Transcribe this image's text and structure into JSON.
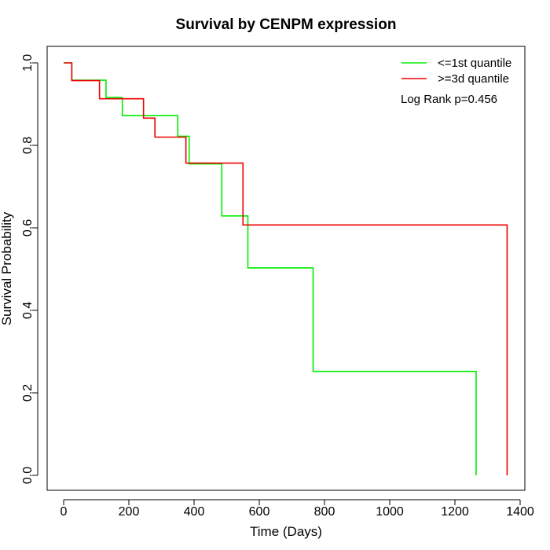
{
  "chart_data": {
    "type": "line",
    "title": "Survival by CENPM expression",
    "xlabel": "Time (Days)",
    "ylabel": "Survival Probability",
    "xlim": [
      0,
      1400
    ],
    "ylim": [
      0,
      1.0
    ],
    "xticks": [
      0,
      200,
      400,
      600,
      800,
      1000,
      1200,
      1400
    ],
    "yticks": [
      0.0,
      0.2,
      0.4,
      0.6,
      0.8,
      1.0
    ],
    "xtick_labels": [
      "0",
      "200",
      "400",
      "600",
      "800",
      "1000",
      "1200",
      "1400"
    ],
    "ytick_labels": [
      "0.0",
      "0.2",
      "0.4",
      "0.6",
      "0.8",
      "1.0"
    ],
    "legend_position": "top-right",
    "annotation": "Log Rank p=0.456",
    "series": [
      {
        "name": "<=1st quantile",
        "color": "#00ee00",
        "step": true,
        "x": [
          0,
          25,
          130,
          180,
          350,
          385,
          485,
          565,
          765,
          1265,
          1265
        ],
        "y": [
          1.0,
          0.958,
          0.916,
          0.872,
          0.822,
          0.755,
          0.629,
          0.503,
          0.252,
          0.252,
          0.0
        ]
      },
      {
        "name": ">=3d quantile",
        "color": "#ee0000",
        "step": true,
        "x": [
          0,
          25,
          110,
          245,
          280,
          375,
          550,
          1360,
          1360
        ],
        "y": [
          1.0,
          0.957,
          0.913,
          0.866,
          0.82,
          0.757,
          0.607,
          0.607,
          0.0
        ]
      }
    ]
  }
}
